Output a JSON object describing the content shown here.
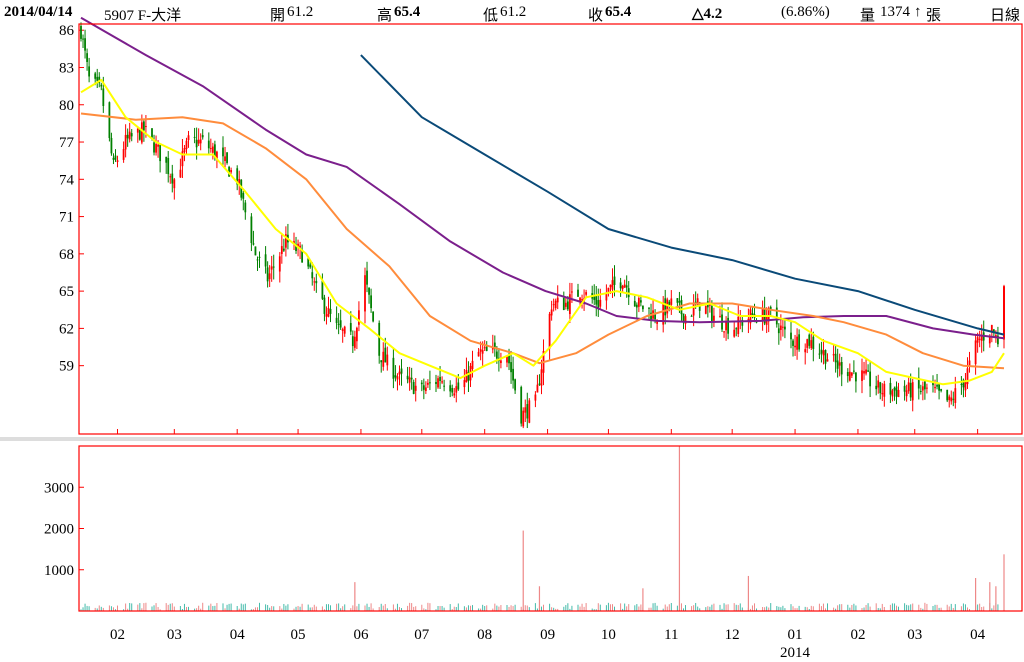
{
  "header": {
    "date": "2014/04/14",
    "stock": "5907 F-大洋",
    "open_label": "開",
    "open_value": "61.2",
    "high_label": "高",
    "high_value": "65.4",
    "low_label": "低",
    "low_value": "61.2",
    "close_label": "收",
    "close_value": "65.4",
    "change": "△4.2",
    "change_pct": "(6.86%)",
    "volume_label": "量",
    "volume_value": "1374",
    "volume_unit": "張",
    "period": "日線"
  },
  "colors": {
    "up": "#ff0000",
    "down": "#008000",
    "ma_yellow": "#ffff00",
    "ma_orange": "#ff8c3c",
    "ma_purple": "#7b1f8c",
    "ma_navy": "#0a4a78",
    "volume_bar": "#ee8888",
    "axis": "#ff0000",
    "separator": "#dddddd"
  },
  "chart_data": {
    "type": "candlestick",
    "price_axis": {
      "ticks": [
        86,
        83,
        80,
        77,
        74,
        71,
        68,
        65,
        62,
        59
      ],
      "range": [
        53.5,
        86.5
      ]
    },
    "volume_axis": {
      "ticks": [
        3000,
        2000,
        1000
      ],
      "range": [
        0,
        4000
      ]
    },
    "x_axis": {
      "month_labels": [
        "02",
        "03",
        "04",
        "05",
        "06",
        "07",
        "08",
        "09",
        "10",
        "11",
        "12",
        "01",
        "02",
        "03",
        "04"
      ],
      "year_label": "2014",
      "start": "2013-01-14",
      "end": "2014-04-14"
    },
    "price_anchors": [
      [
        "2013-01-14",
        86
      ],
      [
        "2013-01-18",
        82
      ],
      [
        "2013-01-24",
        81
      ],
      [
        "2013-01-30",
        75
      ],
      [
        "2013-02-05",
        77
      ],
      [
        "2013-02-14",
        78
      ],
      [
        "2013-02-22",
        76
      ],
      [
        "2013-03-01",
        74
      ],
      [
        "2013-03-08",
        77
      ],
      [
        "2013-03-15",
        77
      ],
      [
        "2013-03-22",
        76
      ],
      [
        "2013-04-01",
        74
      ],
      [
        "2013-04-10",
        68
      ],
      [
        "2013-04-16",
        66
      ],
      [
        "2013-04-25",
        69
      ],
      [
        "2013-05-03",
        68
      ],
      [
        "2013-05-10",
        65
      ],
      [
        "2013-05-20",
        62
      ],
      [
        "2013-05-28",
        61
      ],
      [
        "2013-06-03",
        66
      ],
      [
        "2013-06-10",
        60
      ],
      [
        "2013-06-20",
        58
      ],
      [
        "2013-07-01",
        57
      ],
      [
        "2013-07-10",
        58
      ],
      [
        "2013-07-20",
        57
      ],
      [
        "2013-07-29",
        60
      ],
      [
        "2013-08-05",
        60
      ],
      [
        "2013-08-12",
        60
      ],
      [
        "2013-08-19",
        55
      ],
      [
        "2013-08-26",
        56
      ],
      [
        "2013-09-03",
        64
      ],
      [
        "2013-09-10",
        64
      ],
      [
        "2013-09-17",
        65
      ],
      [
        "2013-09-26",
        64
      ],
      [
        "2013-10-01",
        65
      ],
      [
        "2013-10-08",
        66
      ],
      [
        "2013-10-15",
        64
      ],
      [
        "2013-10-25",
        63
      ],
      [
        "2013-11-01",
        64
      ],
      [
        "2013-11-08",
        63
      ],
      [
        "2013-11-15",
        64
      ],
      [
        "2013-11-22",
        63
      ],
      [
        "2013-12-01",
        62
      ],
      [
        "2013-12-10",
        63
      ],
      [
        "2013-12-20",
        63
      ],
      [
        "2013-12-30",
        61
      ],
      [
        "2014-01-08",
        61
      ],
      [
        "2014-01-15",
        60
      ],
      [
        "2014-01-22",
        59
      ],
      [
        "2014-02-05",
        58
      ],
      [
        "2014-02-12",
        57
      ],
      [
        "2014-02-20",
        57
      ],
      [
        "2014-03-01",
        57
      ],
      [
        "2014-03-10",
        57
      ],
      [
        "2014-03-18",
        56
      ],
      [
        "2014-03-26",
        58
      ],
      [
        "2014-04-01",
        61
      ],
      [
        "2014-04-08",
        62
      ],
      [
        "2014-04-11",
        61
      ],
      [
        "2014-04-14",
        65.4
      ]
    ],
    "ma_yellow": [
      [
        "2013-01-14",
        81
      ],
      [
        "2013-01-24",
        82
      ],
      [
        "2013-02-05",
        79
      ],
      [
        "2013-02-20",
        77
      ],
      [
        "2013-03-05",
        76
      ],
      [
        "2013-03-20",
        76
      ],
      [
        "2013-04-05",
        73
      ],
      [
        "2013-04-20",
        70
      ],
      [
        "2013-05-05",
        68
      ],
      [
        "2013-05-20",
        64
      ],
      [
        "2013-06-05",
        62
      ],
      [
        "2013-06-20",
        60
      ],
      [
        "2013-07-05",
        59
      ],
      [
        "2013-07-20",
        58
      ],
      [
        "2013-08-01",
        59
      ],
      [
        "2013-08-15",
        60
      ],
      [
        "2013-08-25",
        59
      ],
      [
        "2013-09-05",
        61
      ],
      [
        "2013-09-20",
        64.5
      ],
      [
        "2013-10-05",
        65
      ],
      [
        "2013-10-20",
        64.5
      ],
      [
        "2013-11-05",
        63.5
      ],
      [
        "2013-11-20",
        64
      ],
      [
        "2013-12-05",
        63
      ],
      [
        "2013-12-20",
        63
      ],
      [
        "2014-01-01",
        62.5
      ],
      [
        "2014-01-15",
        61
      ],
      [
        "2014-02-01",
        60
      ],
      [
        "2014-02-15",
        58.5
      ],
      [
        "2014-03-01",
        58
      ],
      [
        "2014-03-15",
        57.5
      ],
      [
        "2014-03-28",
        57.8
      ],
      [
        "2014-04-08",
        58.5
      ],
      [
        "2014-04-14",
        60
      ]
    ],
    "ma_orange": [
      [
        "2013-01-14",
        79.3
      ],
      [
        "2013-02-10",
        78.8
      ],
      [
        "2013-03-05",
        79
      ],
      [
        "2013-03-25",
        78.5
      ],
      [
        "2013-04-15",
        76.5
      ],
      [
        "2013-05-05",
        74
      ],
      [
        "2013-05-25",
        70
      ],
      [
        "2013-06-15",
        67
      ],
      [
        "2013-07-05",
        63
      ],
      [
        "2013-07-25",
        61
      ],
      [
        "2013-08-15",
        60
      ],
      [
        "2013-08-28",
        59.2
      ],
      [
        "2013-09-15",
        60
      ],
      [
        "2013-10-01",
        61.5
      ],
      [
        "2013-10-20",
        63
      ],
      [
        "2013-11-10",
        64
      ],
      [
        "2013-12-01",
        64
      ],
      [
        "2013-12-20",
        63.5
      ],
      [
        "2014-01-10",
        63
      ],
      [
        "2014-01-25",
        62.5
      ],
      [
        "2014-02-15",
        61.5
      ],
      [
        "2014-03-05",
        60
      ],
      [
        "2014-03-25",
        59
      ],
      [
        "2014-04-14",
        58.8
      ]
    ],
    "ma_purple": [
      [
        "2013-01-14",
        87
      ],
      [
        "2013-02-15",
        84
      ],
      [
        "2013-03-15",
        81.5
      ],
      [
        "2013-04-15",
        78
      ],
      [
        "2013-05-05",
        76
      ],
      [
        "2013-05-25",
        75
      ],
      [
        "2013-06-20",
        72
      ],
      [
        "2013-07-15",
        69
      ],
      [
        "2013-08-10",
        66.5
      ],
      [
        "2013-08-31",
        65
      ],
      [
        "2013-09-20",
        64
      ],
      [
        "2013-10-05",
        63
      ],
      [
        "2013-10-25",
        62.6
      ],
      [
        "2013-11-15",
        62.5
      ],
      [
        "2013-12-15",
        62.6
      ],
      [
        "2014-01-05",
        62.9
      ],
      [
        "2014-01-25",
        63
      ],
      [
        "2014-02-15",
        63
      ],
      [
        "2014-03-10",
        62
      ],
      [
        "2014-03-30",
        61.5
      ],
      [
        "2014-04-14",
        61.2
      ]
    ],
    "ma_navy": [
      [
        "2013-06-01",
        84
      ],
      [
        "2013-07-01",
        79
      ],
      [
        "2013-08-01",
        76
      ],
      [
        "2013-09-01",
        73
      ],
      [
        "2013-10-01",
        70
      ],
      [
        "2013-11-01",
        68.5
      ],
      [
        "2013-12-01",
        67.5
      ],
      [
        "2014-01-01",
        66
      ],
      [
        "2014-02-01",
        65
      ],
      [
        "2014-03-01",
        63.5
      ],
      [
        "2014-04-01",
        62
      ],
      [
        "2014-04-14",
        61.5
      ]
    ],
    "volume_spikes": [
      [
        "2013-05-29",
        700
      ],
      [
        "2013-08-20",
        1950
      ],
      [
        "2013-08-28",
        600
      ],
      [
        "2013-10-18",
        550
      ],
      [
        "2013-11-05",
        4000
      ],
      [
        "2013-12-09",
        850
      ],
      [
        "2014-03-31",
        800
      ],
      [
        "2014-04-07",
        700
      ],
      [
        "2014-04-10",
        600
      ],
      [
        "2014-04-14",
        1374
      ]
    ]
  }
}
